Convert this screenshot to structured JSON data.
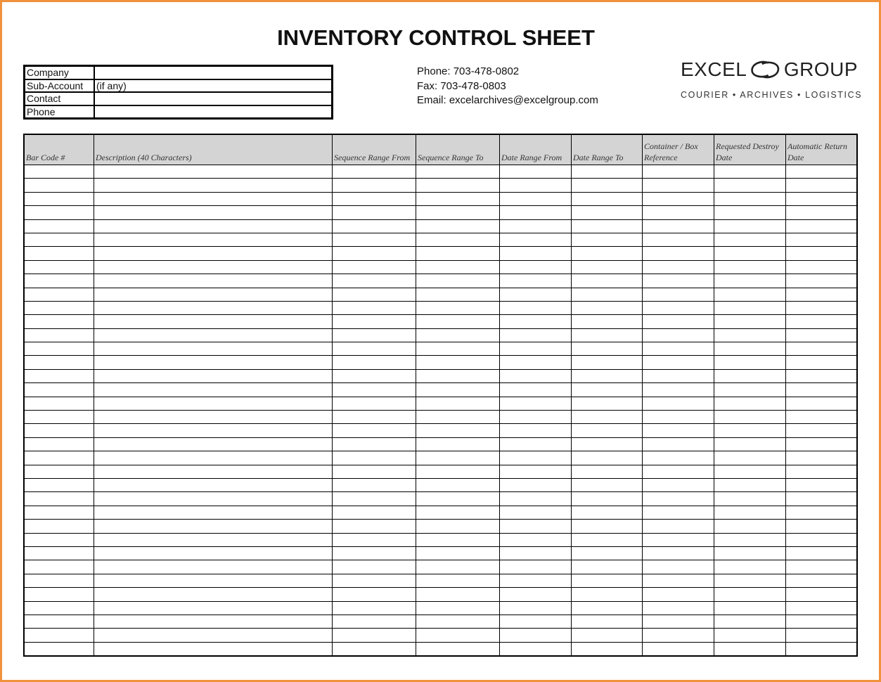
{
  "title": "INVENTORY CONTROL SHEET",
  "info_fields": [
    {
      "label": "Company",
      "value": ""
    },
    {
      "label": "Sub-Account",
      "value": "(if any)"
    },
    {
      "label": "Contact",
      "value": ""
    },
    {
      "label": "Phone",
      "value": ""
    }
  ],
  "contact": {
    "phone": "Phone:  703-478-0802",
    "fax": "Fax:  703-478-0803",
    "email": "Email: excelarchives@excelgroup.com"
  },
  "logo": {
    "word1": "EXCEL",
    "word2": "GROUP",
    "tagline": "COURIER • ARCHIVES • LOGISTICS"
  },
  "table": {
    "columns": [
      "Bar Code #",
      "Description (40 Characters)",
      "Sequence Range From",
      "Sequence Range To",
      "Date Range From",
      "Date Range To",
      "Container / Box Reference",
      "Requested Destroy Date",
      "Automatic Return Date"
    ],
    "empty_rows": 36
  },
  "colors": {
    "frame": "#f0913c",
    "header_bg": "#d4d4d4"
  }
}
